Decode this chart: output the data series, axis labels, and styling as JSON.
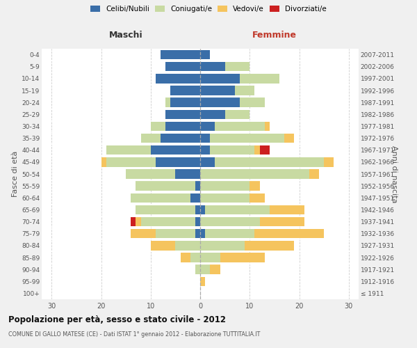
{
  "age_groups": [
    "100+",
    "95-99",
    "90-94",
    "85-89",
    "80-84",
    "75-79",
    "70-74",
    "65-69",
    "60-64",
    "55-59",
    "50-54",
    "45-49",
    "40-44",
    "35-39",
    "30-34",
    "25-29",
    "20-24",
    "15-19",
    "10-14",
    "5-9",
    "0-4"
  ],
  "birth_years": [
    "≤ 1911",
    "1912-1916",
    "1917-1921",
    "1922-1926",
    "1927-1931",
    "1932-1936",
    "1937-1941",
    "1942-1946",
    "1947-1951",
    "1952-1956",
    "1957-1961",
    "1962-1966",
    "1967-1971",
    "1972-1976",
    "1977-1981",
    "1982-1986",
    "1987-1991",
    "1992-1996",
    "1997-2001",
    "2002-2006",
    "2007-2011"
  ],
  "male": {
    "celibi": [
      0,
      0,
      0,
      0,
      0,
      1,
      1,
      1,
      2,
      1,
      5,
      9,
      10,
      8,
      7,
      7,
      6,
      6,
      9,
      7,
      8
    ],
    "coniugati": [
      0,
      0,
      1,
      2,
      5,
      8,
      11,
      12,
      12,
      12,
      10,
      10,
      9,
      4,
      3,
      0,
      1,
      0,
      0,
      0,
      0
    ],
    "vedovi": [
      0,
      0,
      0,
      2,
      5,
      5,
      1,
      0,
      0,
      0,
      0,
      1,
      0,
      0,
      0,
      0,
      0,
      0,
      0,
      0,
      0
    ],
    "divorziati": [
      0,
      0,
      0,
      0,
      0,
      0,
      1,
      0,
      0,
      0,
      0,
      0,
      0,
      0,
      0,
      0,
      0,
      0,
      0,
      0,
      0
    ]
  },
  "female": {
    "nubili": [
      0,
      0,
      0,
      0,
      0,
      1,
      0,
      1,
      0,
      0,
      0,
      3,
      2,
      2,
      3,
      5,
      8,
      7,
      8,
      5,
      2
    ],
    "coniugate": [
      0,
      0,
      2,
      4,
      9,
      10,
      12,
      13,
      10,
      10,
      22,
      22,
      9,
      15,
      10,
      5,
      5,
      4,
      8,
      5,
      0
    ],
    "vedove": [
      0,
      1,
      2,
      9,
      10,
      14,
      9,
      7,
      3,
      2,
      2,
      2,
      1,
      2,
      1,
      0,
      0,
      0,
      0,
      0,
      0
    ],
    "divorziate": [
      0,
      0,
      0,
      0,
      0,
      0,
      0,
      0,
      0,
      0,
      0,
      0,
      2,
      0,
      0,
      0,
      0,
      0,
      0,
      0,
      0
    ]
  },
  "colors": {
    "celibi_nubili": "#3a6ea8",
    "coniugati": "#c8daa2",
    "vedovi": "#f5c45e",
    "divorziati": "#cc2020"
  },
  "xlim": 32,
  "title": "Popolazione per età, sesso e stato civile - 2012",
  "subtitle": "COMUNE DI GALLO MATESE (CE) - Dati ISTAT 1° gennaio 2012 - Elaborazione TUTTITALIA.IT",
  "ylabel_left": "Fasce di età",
  "ylabel_right": "Anni di nascita",
  "xlabel_male": "Maschi",
  "xlabel_female": "Femmine",
  "bg_color": "#f0f0f0",
  "plot_bg_color": "#ffffff"
}
